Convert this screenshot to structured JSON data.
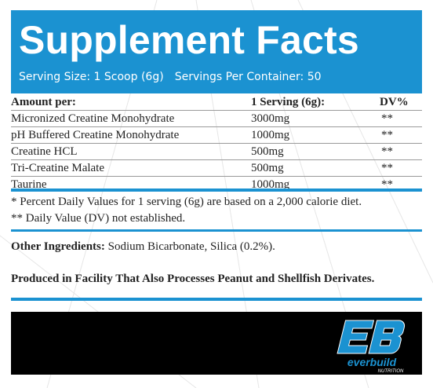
{
  "header": {
    "title": "Supplement Facts",
    "serving_size": "Serving Size: 1 Scoop (6g)",
    "servings_per_container": "Servings Per Container: 50"
  },
  "table": {
    "columns": [
      "Amount per:",
      "1 Serving (6g):",
      "DV%"
    ],
    "rows": [
      {
        "name": "Micronized Creatine Monohydrate",
        "amount": "3000mg",
        "dv": "**"
      },
      {
        "name": "pH Buffered Creatine Monohydrate",
        "amount": "1000mg",
        "dv": "**"
      },
      {
        "name": "Creatine HCL",
        "amount": "500mg",
        "dv": "**"
      },
      {
        "name": "Tri-Creatine Malate",
        "amount": "500mg",
        "dv": "**"
      },
      {
        "name": "Taurine",
        "amount": "1000mg",
        "dv": "**"
      }
    ]
  },
  "notes": {
    "percent_daily": "* Percent Daily Values for 1 serving (6g) are based on a 2,000 calorie diet.",
    "daily_value": "** Daily Value (DV) not established."
  },
  "other_ingredients": {
    "label": "Other Ingredients:",
    "value": " Sodium Bicarbonate, Silica (0.2%)."
  },
  "facility_warning": "Produced in Facility That Also Processes Peanut and Shellfish Derivates.",
  "logo": {
    "monogram": "EB",
    "brand": "everbuild",
    "sub": "NUTRITION"
  },
  "colors": {
    "accent": "#1b92d1",
    "footer": "#000000",
    "text": "#222222"
  }
}
